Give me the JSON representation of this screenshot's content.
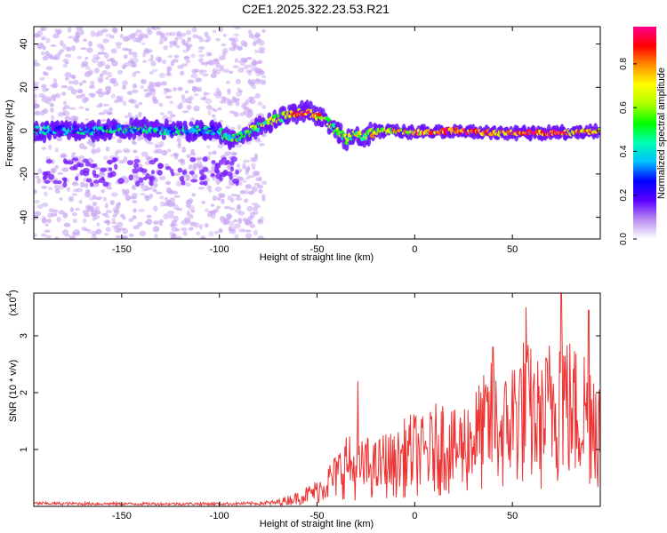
{
  "title": "C2E1.2025.322.23.53.R21",
  "chart_data": [
    {
      "type": "heatmap",
      "xlabel": "Height of straight line (km)",
      "ylabel": "Frequency (Hz)",
      "xlim": [
        -195,
        95
      ],
      "ylim": [
        -50,
        48
      ],
      "xticks": [
        -150,
        -100,
        -50,
        0,
        50
      ],
      "yticks": [
        -40,
        -20,
        0,
        20,
        40
      ],
      "colorbar": {
        "label": "Normalized spectral amplitude",
        "range": [
          0,
          0.97
        ],
        "ticks": [
          "0.0",
          "0.2",
          "0.4",
          "0.6",
          "0.8"
        ],
        "tick_values": [
          0,
          0.2,
          0.4,
          0.6,
          0.8
        ],
        "colors": [
          "#ffffff",
          "#b98cf0",
          "#5a00ff",
          "#0000ff",
          "#00c0ff",
          "#00ffb0",
          "#00ff00",
          "#b0ff00",
          "#ffff00",
          "#ff9000",
          "#ff0000",
          "#ff0090"
        ]
      },
      "ridge": {
        "x": [
          -195,
          -180,
          -160,
          -140,
          -120,
          -100,
          -95,
          -85,
          -75,
          -65,
          -55,
          -50,
          -45,
          -40,
          -35,
          -30,
          -25,
          -20,
          -10,
          0,
          20,
          40,
          60,
          80,
          95
        ],
        "freq": [
          0,
          0,
          0,
          1,
          0,
          0,
          -4,
          -1,
          4,
          7,
          9,
          7,
          4,
          0,
          -4,
          -2,
          -3,
          0,
          0,
          -1,
          0,
          -1,
          -1,
          -1,
          0
        ],
        "amplitude": [
          0.3,
          0.35,
          0.35,
          0.4,
          0.35,
          0.35,
          0.45,
          0.5,
          0.55,
          0.65,
          0.85,
          0.75,
          0.6,
          0.55,
          0.55,
          0.6,
          0.6,
          0.65,
          0.7,
          0.75,
          0.85,
          0.8,
          0.85,
          0.8,
          0.75
        ]
      }
    },
    {
      "type": "line",
      "xlabel": "Height of straight line (km)",
      "ylabel": "SNR (10 * v/v)",
      "multiplier_label": "(x10",
      "multiplier_exponent": "4",
      "xlim": [
        -195,
        95
      ],
      "ylim": [
        0,
        3.75
      ],
      "xticks": [
        -150,
        -100,
        -50,
        0,
        50
      ],
      "yticks": [
        1,
        2,
        3
      ],
      "color": "#ee3333",
      "envelope": {
        "x": [
          -195,
          -150,
          -100,
          -80,
          -70,
          -60,
          -50,
          -45,
          -40,
          -35,
          -30,
          -25,
          -20,
          -15,
          -10,
          -5,
          0,
          5,
          10,
          15,
          20,
          25,
          30,
          35,
          40,
          45,
          50,
          55,
          60,
          65,
          70,
          75,
          80,
          85,
          90,
          95
        ],
        "y": [
          0.06,
          0.05,
          0.05,
          0.06,
          0.12,
          0.25,
          0.45,
          0.7,
          0.9,
          1.3,
          1.0,
          1.2,
          1.1,
          1.3,
          1.2,
          1.5,
          1.6,
          1.5,
          1.7,
          1.9,
          1.6,
          1.8,
          2.0,
          2.2,
          2.5,
          2.1,
          2.6,
          2.9,
          2.7,
          2.4,
          3.0,
          3.4,
          2.8,
          2.7,
          3.0,
          2.4
        ]
      },
      "peaks": [
        {
          "x": -29,
          "y": 2.2
        },
        {
          "x": 40,
          "y": 2.8
        },
        {
          "x": 57,
          "y": 3.5
        },
        {
          "x": 75,
          "y": 3.75
        },
        {
          "x": 89,
          "y": 3.45
        }
      ]
    }
  ]
}
